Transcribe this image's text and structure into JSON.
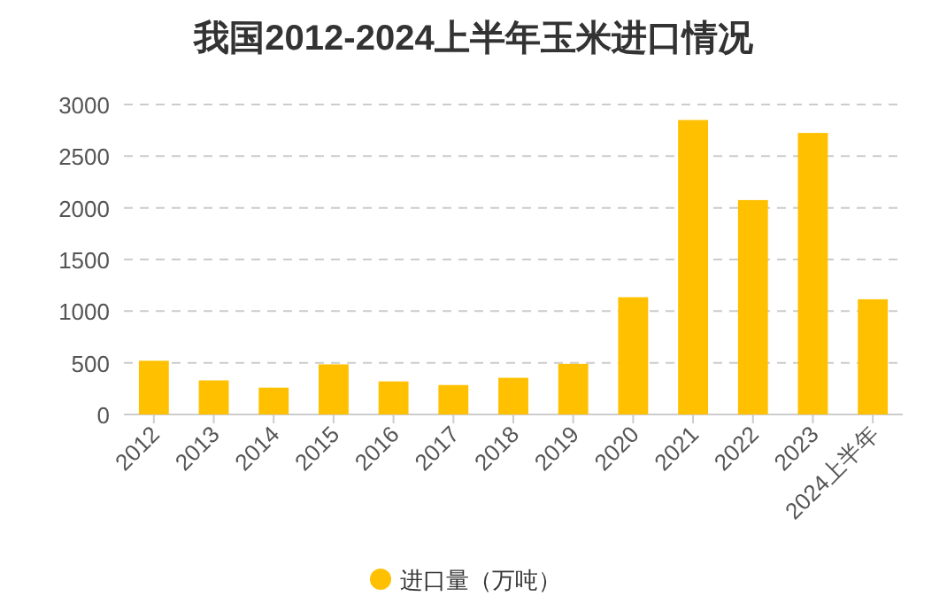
{
  "chart_data": {
    "type": "bar",
    "title": "我国2012-2024上半年玉米进口情况",
    "categories": [
      "2012",
      "2013",
      "2014",
      "2015",
      "2016",
      "2017",
      "2018",
      "2019",
      "2020",
      "2021",
      "2022",
      "2023",
      "2024上半年"
    ],
    "series": [
      {
        "name": "进口量（万吨）",
        "color": "#ffc000",
        "values": [
          520,
          330,
          260,
          485,
          320,
          285,
          355,
          490,
          1135,
          2850,
          2075,
          2725,
          1115
        ]
      }
    ],
    "ylim": [
      0,
      3000
    ],
    "yticks": [
      0,
      500,
      1000,
      1500,
      2000,
      2500,
      3000
    ],
    "grid": "y",
    "legend": "bottom"
  }
}
